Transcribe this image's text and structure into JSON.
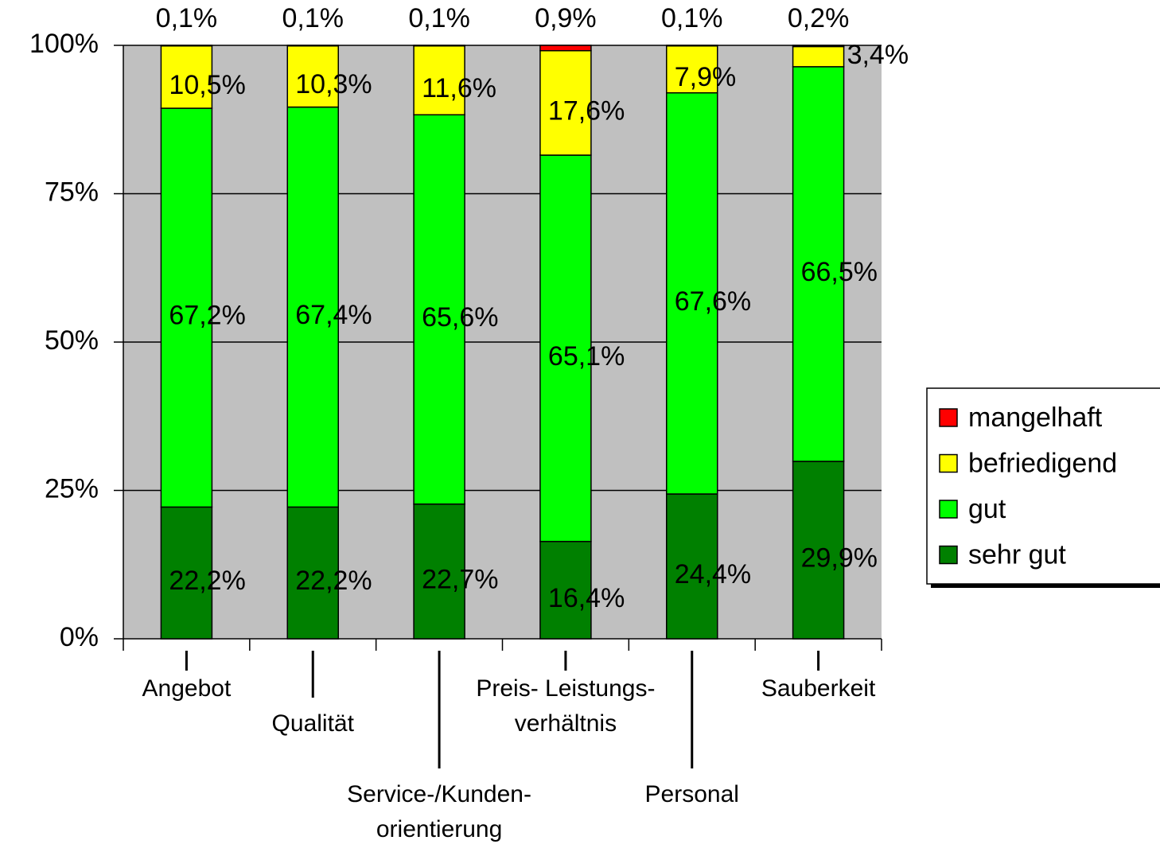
{
  "chart_data": {
    "type": "stacked_bar",
    "categories": [
      "Angebot",
      "Qualität",
      "Service-/Kunden-\norientierung",
      "Preis- Leistungs-\nverhältnis",
      "Personal",
      "Sauberkeit"
    ],
    "series": [
      {
        "name": "sehr gut",
        "color": "#008000",
        "values": [
          22.2,
          22.2,
          22.7,
          16.4,
          24.4,
          29.9
        ],
        "value_labels": [
          "22,2%",
          "22,2%",
          "22,7%",
          "16,4%",
          "24,4%",
          "29,9%"
        ]
      },
      {
        "name": "gut",
        "color": "#00ff00",
        "values": [
          67.2,
          67.4,
          65.6,
          65.1,
          67.6,
          66.5
        ],
        "value_labels": [
          "67,2%",
          "67,4%",
          "65,6%",
          "65,1%",
          "67,6%",
          "66,5%"
        ]
      },
      {
        "name": "befriedigend",
        "color": "#ffff00",
        "values": [
          10.5,
          10.3,
          11.6,
          17.6,
          7.9,
          3.4
        ],
        "value_labels": [
          "10,5%",
          "10,3%",
          "11,6%",
          "17,6%",
          "7,9%",
          "3,4%"
        ]
      },
      {
        "name": "mangelhaft",
        "color": "#ff0000",
        "values": [
          0.1,
          0.1,
          0.1,
          0.9,
          0.1,
          0.2
        ],
        "value_labels": [
          "0,1%",
          "0,1%",
          "0,1%",
          "0,9%",
          "0,1%",
          "0,2%"
        ]
      }
    ],
    "ylim": [
      0,
      100
    ],
    "yticks": [
      {
        "value": 0,
        "label": "0%"
      },
      {
        "value": 25,
        "label": "25%"
      },
      {
        "value": 50,
        "label": "50%"
      },
      {
        "value": 75,
        "label": "75%"
      },
      {
        "value": 100,
        "label": "100%"
      }
    ],
    "grid": true,
    "legend": "right"
  }
}
